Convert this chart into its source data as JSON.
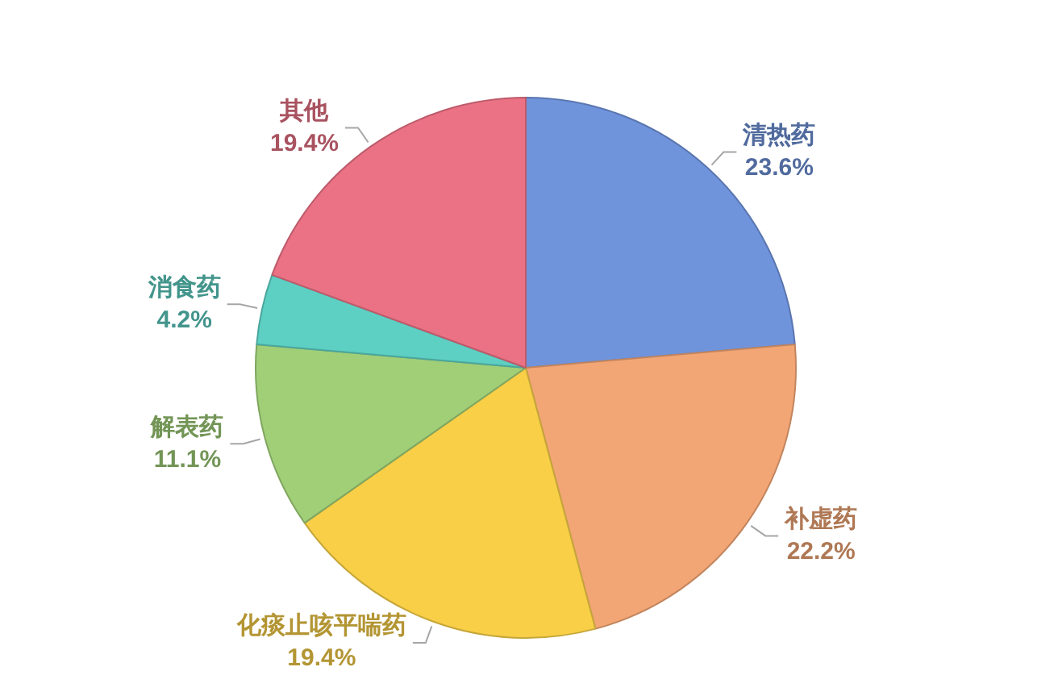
{
  "chart_data": {
    "type": "pie",
    "categories": [
      "清热药",
      "补虚药",
      "化痰止咳平喘药",
      "解表药",
      "消食药",
      "其他"
    ],
    "values": [
      23.6,
      22.2,
      19.4,
      11.1,
      4.2,
      19.4
    ],
    "colors": [
      "#7094dc",
      "#f3a675",
      "#f8cf47",
      "#a0cf78",
      "#5dcfc3",
      "#eb7285"
    ],
    "value_labels": [
      "23.6%",
      "22.2%",
      "19.4%",
      "11.1%",
      "4.2%",
      "19.4%"
    ]
  }
}
